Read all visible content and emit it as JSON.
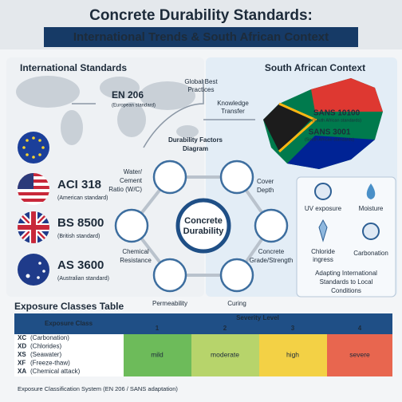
{
  "header": {
    "title": "Concrete Durability Standards:",
    "subtitle": "International Trends & South African Context"
  },
  "international": {
    "title": "International Standards",
    "standards": [
      {
        "code": "EN 206",
        "desc": "(European standard)"
      },
      {
        "code": "ACI 318",
        "desc": "(American standard)"
      },
      {
        "code": "BS 8500",
        "desc": "(British standard)"
      },
      {
        "code": "AS 3600",
        "desc": "(Australian standard)"
      }
    ]
  },
  "flow": {
    "global": [
      "Global Best",
      "Practices"
    ],
    "transfer": [
      "Knowledge",
      "Transfer"
    ]
  },
  "diagram": {
    "title": [
      "Durability Factors",
      "Diagram"
    ],
    "center": [
      "Concrete",
      "Durability"
    ],
    "factors": [
      {
        "lines": [
          "Water/",
          "Cement",
          "Ratio (W/C)"
        ]
      },
      {
        "lines": [
          "Cover",
          "Depth"
        ]
      },
      {
        "lines": [
          "Chemical",
          "Resistance"
        ]
      },
      {
        "lines": [
          "Concrete",
          "Grade/Strength"
        ]
      },
      {
        "lines": [
          "Permeability"
        ]
      },
      {
        "lines": [
          "Curing"
        ]
      }
    ]
  },
  "south_africa": {
    "title": "South African Context",
    "standards": [
      {
        "code": "SANS 10100",
        "desc": "(South African standards)"
      },
      {
        "code": "SANS 3001",
        "desc": "(South African standards)"
      }
    ],
    "conditions": [
      {
        "lines": [
          "UV exposure"
        ]
      },
      {
        "lines": [
          "Moisture"
        ]
      },
      {
        "lines": [
          "Chloride",
          "ingress"
        ]
      },
      {
        "lines": [
          "Carbonation"
        ]
      }
    ],
    "note": [
      "Adapting International",
      "Standards to Local",
      "Conditions"
    ]
  },
  "table": {
    "title": "Exposure Classes Table",
    "class_header": "Exposure Class",
    "severity_header": "Severity Level",
    "levels": [
      "1",
      "2",
      "3",
      "4"
    ],
    "rows": [
      {
        "code": "XC",
        "name": "(Carbonation)"
      },
      {
        "code": "XD",
        "name": "(Chlorides)"
      },
      {
        "code": "XS",
        "name": "(Seawater)"
      },
      {
        "code": "XF",
        "name": "(Freeze-thaw)"
      },
      {
        "code": "XA",
        "name": "(Chemical attack)"
      }
    ],
    "ratings": [
      "mild",
      "moderate",
      "high",
      "severe"
    ],
    "footer": "Exposure Classification System (EN 206 / SANS adaptation)"
  }
}
